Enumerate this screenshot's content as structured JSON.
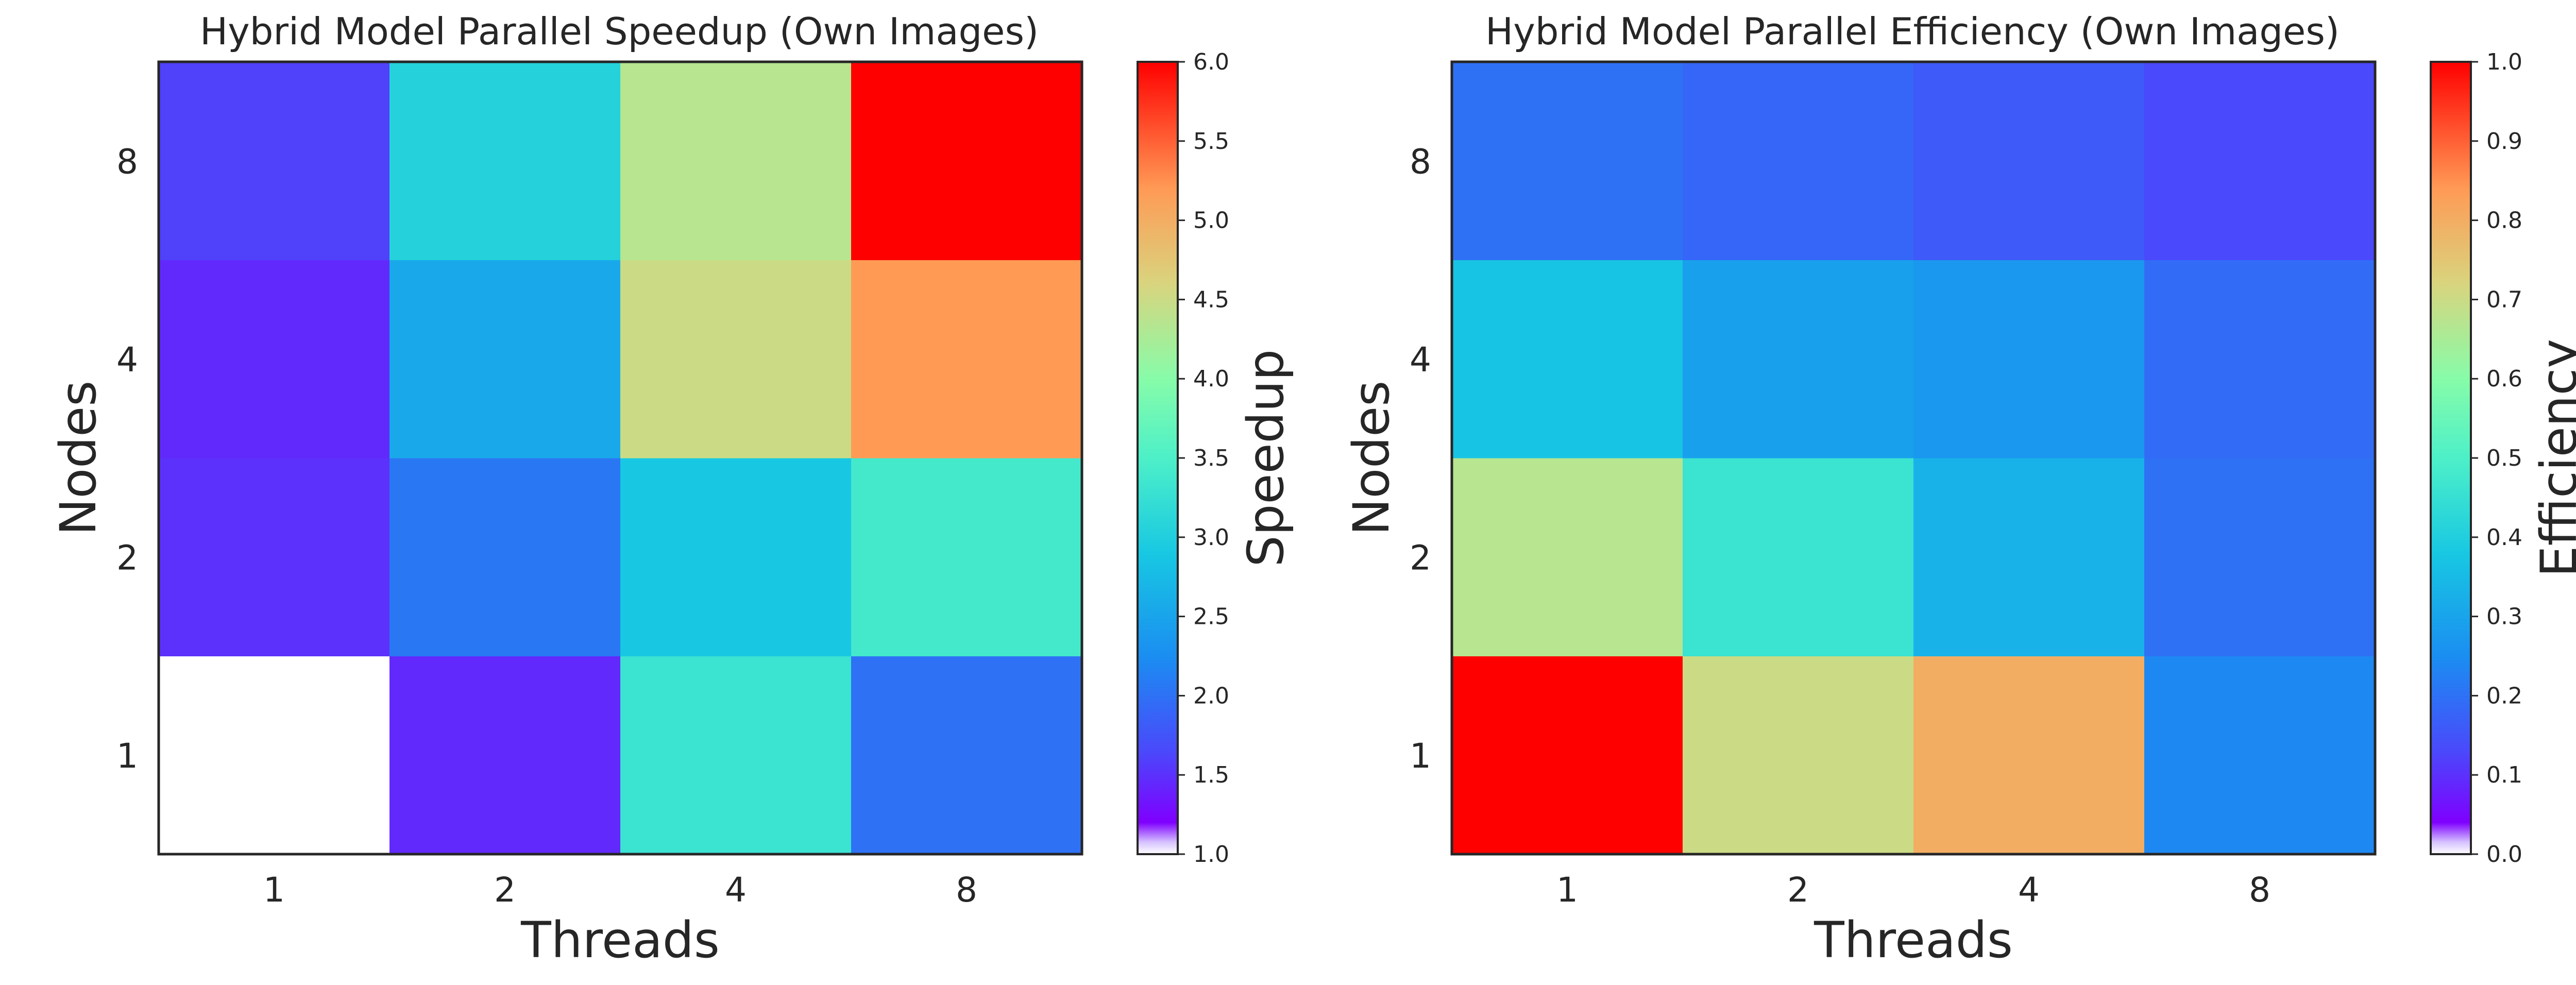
{
  "chart_data": [
    {
      "type": "heatmap",
      "title": "Hybrid Model Parallel Speedup (Own Images)",
      "xlabel": "Threads",
      "ylabel": "Nodes",
      "x": [
        "1",
        "2",
        "4",
        "8"
      ],
      "y": [
        "1",
        "2",
        "4",
        "8"
      ],
      "values": [
        [
          1.0,
          1.45,
          3.3,
          2.0
        ],
        [
          1.5,
          2.05,
          2.9,
          3.4
        ],
        [
          1.45,
          2.55,
          4.5,
          5.2
        ],
        [
          1.6,
          3.05,
          4.35,
          6.0
        ]
      ],
      "colorbar": {
        "label": "Speedup",
        "range": [
          1.0,
          6.0
        ],
        "ticks": [
          "1.0",
          "1.5",
          "2.0",
          "2.5",
          "3.0",
          "3.5",
          "4.0",
          "4.5",
          "5.0",
          "5.5",
          "6.0"
        ]
      },
      "colormap": "rainbow",
      "grid": false
    },
    {
      "type": "heatmap",
      "title": "Hybrid Model Parallel Efficiency (Own Images)",
      "xlabel": "Threads",
      "ylabel": "Nodes",
      "x": [
        "1",
        "2",
        "4",
        "8"
      ],
      "y": [
        "1",
        "2",
        "4",
        "8"
      ],
      "values": [
        [
          1.0,
          0.7,
          0.8,
          0.24
        ],
        [
          0.67,
          0.46,
          0.33,
          0.2
        ],
        [
          0.37,
          0.29,
          0.27,
          0.19
        ],
        [
          0.2,
          0.18,
          0.16,
          0.13
        ]
      ],
      "colorbar": {
        "label": "Efficiency",
        "range": [
          0.0,
          1.0
        ],
        "ticks": [
          "0.0",
          "0.1",
          "0.2",
          "0.3",
          "0.4",
          "0.5",
          "0.6",
          "0.7",
          "0.8",
          "0.9",
          "1.0"
        ]
      },
      "colormap": "rainbow",
      "grid": false
    }
  ]
}
